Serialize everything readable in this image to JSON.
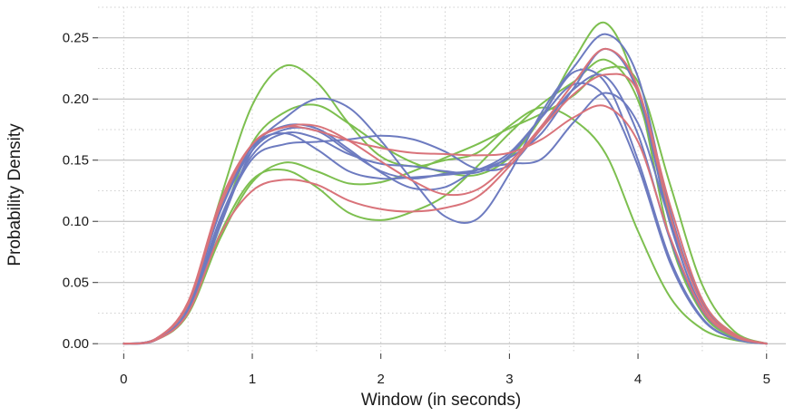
{
  "chart_data": {
    "type": "line",
    "xlabel": "Window (in seconds)",
    "ylabel": "Probability Density",
    "xlim": [
      -0.2,
      5.15
    ],
    "ylim": [
      -0.008,
      0.275
    ],
    "x_ticks": [
      "0",
      "1",
      "2",
      "3",
      "4",
      "5"
    ],
    "y_ticks": [
      "0.00",
      "0.05",
      "0.10",
      "0.15",
      "0.20",
      "0.25"
    ],
    "grid": true,
    "colors": {
      "green": "#7dbf4f",
      "blue": "#6d7bc0",
      "red": "#d9737a"
    },
    "x": [
      0,
      0.25,
      0.5,
      0.75,
      1,
      1.25,
      1.5,
      1.75,
      2,
      2.25,
      2.5,
      2.75,
      3,
      3.25,
      3.5,
      3.75,
      4,
      4.25,
      4.5,
      4.75,
      5
    ],
    "series": [
      {
        "color": "green",
        "values": [
          0.0,
          0.004,
          0.032,
          0.118,
          0.195,
          0.227,
          0.214,
          0.18,
          0.153,
          0.145,
          0.15,
          0.156,
          0.178,
          0.193,
          0.183,
          0.155,
          0.092,
          0.038,
          0.012,
          0.003,
          0.0
        ]
      },
      {
        "color": "green",
        "values": [
          0.0,
          0.003,
          0.026,
          0.098,
          0.164,
          0.189,
          0.195,
          0.18,
          0.162,
          0.148,
          0.14,
          0.138,
          0.152,
          0.185,
          0.232,
          0.262,
          0.205,
          0.085,
          0.025,
          0.005,
          0.0
        ]
      },
      {
        "color": "green",
        "values": [
          0.0,
          0.003,
          0.025,
          0.09,
          0.134,
          0.142,
          0.128,
          0.107,
          0.101,
          0.108,
          0.121,
          0.145,
          0.172,
          0.196,
          0.214,
          0.232,
          0.199,
          0.103,
          0.035,
          0.008,
          0.0
        ]
      },
      {
        "color": "green",
        "values": [
          0.0,
          0.003,
          0.024,
          0.086,
          0.132,
          0.148,
          0.141,
          0.131,
          0.132,
          0.141,
          0.152,
          0.163,
          0.176,
          0.188,
          0.203,
          0.225,
          0.214,
          0.13,
          0.048,
          0.01,
          0.0
        ]
      },
      {
        "color": "blue",
        "values": [
          0.0,
          0.004,
          0.031,
          0.108,
          0.158,
          0.175,
          0.174,
          0.157,
          0.141,
          0.135,
          0.139,
          0.142,
          0.152,
          0.172,
          0.209,
          0.241,
          0.205,
          0.098,
          0.029,
          0.006,
          0.0
        ]
      },
      {
        "color": "blue",
        "values": [
          0.0,
          0.003,
          0.026,
          0.096,
          0.158,
          0.184,
          0.2,
          0.193,
          0.166,
          0.133,
          0.104,
          0.102,
          0.139,
          0.189,
          0.226,
          0.253,
          0.218,
          0.108,
          0.033,
          0.007,
          0.0
        ]
      },
      {
        "color": "blue",
        "values": [
          0.0,
          0.003,
          0.027,
          0.1,
          0.151,
          0.163,
          0.165,
          0.167,
          0.17,
          0.167,
          0.157,
          0.143,
          0.146,
          0.176,
          0.208,
          0.218,
          0.171,
          0.085,
          0.027,
          0.006,
          0.0
        ]
      },
      {
        "color": "blue",
        "values": [
          0.0,
          0.003,
          0.028,
          0.102,
          0.154,
          0.172,
          0.168,
          0.155,
          0.147,
          0.145,
          0.141,
          0.14,
          0.154,
          0.186,
          0.222,
          0.213,
          0.15,
          0.069,
          0.021,
          0.004,
          0.0
        ]
      },
      {
        "color": "blue",
        "values": [
          0.0,
          0.004,
          0.033,
          0.112,
          0.161,
          0.172,
          0.159,
          0.141,
          0.135,
          0.136,
          0.138,
          0.142,
          0.156,
          0.185,
          0.212,
          0.201,
          0.145,
          0.066,
          0.02,
          0.004,
          0.0
        ]
      },
      {
        "color": "blue",
        "values": [
          0.0,
          0.004,
          0.031,
          0.108,
          0.161,
          0.178,
          0.176,
          0.159,
          0.14,
          0.127,
          0.128,
          0.142,
          0.147,
          0.151,
          0.181,
          0.205,
          0.18,
          0.1,
          0.033,
          0.007,
          0.0
        ]
      },
      {
        "color": "red",
        "values": [
          0.0,
          0.004,
          0.034,
          0.116,
          0.163,
          0.177,
          0.178,
          0.166,
          0.149,
          0.133,
          0.122,
          0.126,
          0.148,
          0.178,
          0.213,
          0.241,
          0.209,
          0.105,
          0.032,
          0.007,
          0.0
        ]
      },
      {
        "color": "red",
        "values": [
          0.0,
          0.003,
          0.025,
          0.089,
          0.125,
          0.134,
          0.13,
          0.117,
          0.11,
          0.108,
          0.111,
          0.12,
          0.145,
          0.176,
          0.204,
          0.22,
          0.206,
          0.113,
          0.036,
          0.008,
          0.0
        ]
      },
      {
        "color": "red",
        "values": [
          0.0,
          0.004,
          0.032,
          0.112,
          0.163,
          0.177,
          0.174,
          0.166,
          0.16,
          0.156,
          0.155,
          0.154,
          0.156,
          0.167,
          0.185,
          0.194,
          0.165,
          0.087,
          0.028,
          0.006,
          0.0
        ]
      }
    ]
  }
}
